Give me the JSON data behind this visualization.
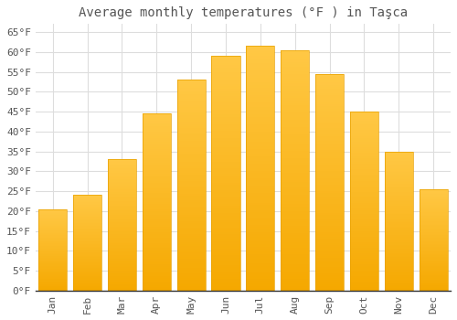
{
  "title": "Average monthly temperatures (°F ) in Taşca",
  "months": [
    "Jan",
    "Feb",
    "Mar",
    "Apr",
    "May",
    "Jun",
    "Jul",
    "Aug",
    "Sep",
    "Oct",
    "Nov",
    "Dec"
  ],
  "values": [
    20.5,
    24.0,
    33.0,
    44.5,
    53.0,
    59.0,
    61.5,
    60.5,
    54.5,
    45.0,
    35.0,
    25.5
  ],
  "bar_color_top": "#FFC845",
  "bar_color_bottom": "#F5A800",
  "bar_edge_color": "#E8A000",
  "background_color": "#FFFFFF",
  "grid_color": "#DDDDDD",
  "text_color": "#555555",
  "ylim": [
    0,
    67
  ],
  "yticks": [
    0,
    5,
    10,
    15,
    20,
    25,
    30,
    35,
    40,
    45,
    50,
    55,
    60,
    65
  ],
  "title_fontsize": 10,
  "tick_fontsize": 8,
  "bar_width": 0.82
}
